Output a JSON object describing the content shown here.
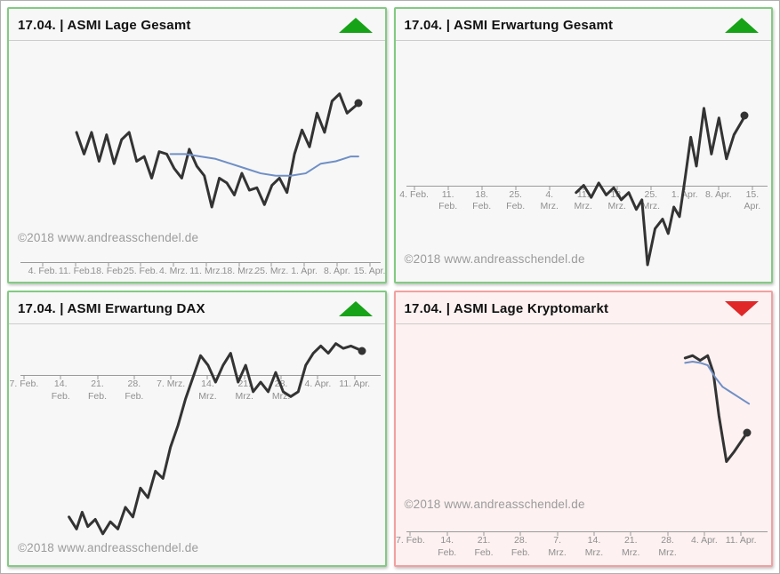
{
  "note": "Dashboard of four ASMI sentiment line charts; source charts have no y-axis labels, so series values are stored as relative plot positions (x_pct from left 0-100, y_pct from top 0-100).",
  "chart_data": [
    {
      "type": "line",
      "title": "17.04. | ASMI Lage Gesamt",
      "trend": "up",
      "trend_color": "#17a317",
      "border_color": "#82ca82",
      "bg_color": "#f7f7f7",
      "watermark": "©2018 www.andreasschendel.de",
      "watermark_y_pct": 79,
      "axis": {
        "y_pct": 92,
        "start_pct": 9,
        "end_pct": 96,
        "ticks": [
          [
            "4. Feb.",
            ""
          ],
          [
            "11. Feb.",
            ""
          ],
          [
            "18. Feb.",
            ""
          ],
          [
            "25. Feb.",
            ""
          ],
          [
            "4. Mrz.",
            ""
          ],
          [
            "11. Mrz.",
            ""
          ],
          [
            "18. Mrz.",
            ""
          ],
          [
            "25. Mrz.",
            ""
          ],
          [
            "1. Apr.",
            ""
          ],
          [
            "8. Apr.",
            ""
          ],
          [
            "15. Apr.",
            ""
          ]
        ]
      },
      "series": [
        {
          "name": "ASMI Lage Gesamt",
          "color": "#333333",
          "width": 3,
          "end_dot": true,
          "points_pct": [
            [
              18,
              38
            ],
            [
              20,
              47
            ],
            [
              22,
              38
            ],
            [
              24,
              50
            ],
            [
              26,
              39
            ],
            [
              28,
              51
            ],
            [
              30,
              41
            ],
            [
              32,
              38
            ],
            [
              34,
              50
            ],
            [
              36,
              48
            ],
            [
              38,
              57
            ],
            [
              40,
              46
            ],
            [
              42,
              47
            ],
            [
              44,
              53
            ],
            [
              46,
              57
            ],
            [
              48,
              45
            ],
            [
              50,
              52
            ],
            [
              52,
              56
            ],
            [
              54,
              69
            ],
            [
              56,
              57
            ],
            [
              58,
              59
            ],
            [
              60,
              64
            ],
            [
              62,
              55
            ],
            [
              64,
              62
            ],
            [
              66,
              61
            ],
            [
              68,
              68
            ],
            [
              70,
              60
            ],
            [
              72,
              57
            ],
            [
              74,
              63
            ],
            [
              76,
              47
            ],
            [
              78,
              37
            ],
            [
              80,
              44
            ],
            [
              82,
              30
            ],
            [
              84,
              38
            ],
            [
              86,
              25
            ],
            [
              88,
              22
            ],
            [
              90,
              30
            ],
            [
              93,
              26
            ]
          ]
        },
        {
          "name": "Trend (geglättet)",
          "color": "#6f8fc5",
          "width": 2,
          "end_dot": false,
          "points_pct": [
            [
              43,
              47
            ],
            [
              47,
              47
            ],
            [
              51,
              48
            ],
            [
              55,
              49
            ],
            [
              59,
              51
            ],
            [
              63,
              53
            ],
            [
              67,
              55
            ],
            [
              71,
              56
            ],
            [
              75,
              56
            ],
            [
              79,
              55
            ],
            [
              83,
              51
            ],
            [
              87,
              50
            ],
            [
              91,
              48
            ],
            [
              93,
              48
            ]
          ]
        }
      ]
    },
    {
      "type": "line",
      "title": "17.04. | ASMI Erwartung Gesamt",
      "trend": "up",
      "trend_color": "#17a317",
      "border_color": "#82ca82",
      "bg_color": "#f7f7f7",
      "watermark": "©2018 www.andreasschendel.de",
      "watermark_y_pct": 88,
      "axis": {
        "y_pct": 60,
        "start_pct": 5,
        "end_pct": 95,
        "ticks": [
          [
            "4. Feb.",
            ""
          ],
          [
            "11.",
            "Feb."
          ],
          [
            "18.",
            "Feb."
          ],
          [
            "25.",
            "Feb."
          ],
          [
            "4.",
            "Mrz."
          ],
          [
            "11.",
            "Mrz."
          ],
          [
            "18.",
            "Mrz."
          ],
          [
            "25.",
            "Mrz."
          ],
          [
            "1. Apr.",
            ""
          ],
          [
            "8. Apr.",
            ""
          ],
          [
            "15.",
            "Apr."
          ]
        ]
      },
      "series": [
        {
          "name": "ASMI Erwartung Gesamt",
          "color": "#333333",
          "width": 3,
          "end_dot": true,
          "points_pct": [
            [
              48,
              63
            ],
            [
              50,
              60
            ],
            [
              52,
              65
            ],
            [
              54,
              59
            ],
            [
              56,
              64
            ],
            [
              58,
              61
            ],
            [
              60,
              66
            ],
            [
              62,
              63
            ],
            [
              64,
              70
            ],
            [
              65.5,
              66
            ],
            [
              67,
              93
            ],
            [
              69,
              78
            ],
            [
              71,
              74
            ],
            [
              72.5,
              80
            ],
            [
              74,
              69
            ],
            [
              75.5,
              73
            ],
            [
              77,
              57
            ],
            [
              78.5,
              40
            ],
            [
              80,
              52
            ],
            [
              82,
              28
            ],
            [
              84,
              47
            ],
            [
              86,
              32
            ],
            [
              88,
              49
            ],
            [
              90,
              39
            ],
            [
              93,
              31
            ]
          ]
        }
      ]
    },
    {
      "type": "line",
      "title": "17.04. | ASMI Erwartung DAX",
      "trend": "up",
      "trend_color": "#17a317",
      "border_color": "#82ca82",
      "bg_color": "#f7f7f7",
      "watermark": "©2018 www.andreasschendel.de",
      "watermark_y_pct": 90,
      "axis": {
        "y_pct": 21,
        "start_pct": 4,
        "end_pct": 92,
        "ticks": [
          [
            "7. Feb.",
            ""
          ],
          [
            "14.",
            "Feb."
          ],
          [
            "21.",
            "Feb."
          ],
          [
            "28.",
            "Feb."
          ],
          [
            "7. Mrz.",
            ""
          ],
          [
            "14.",
            "Mrz."
          ],
          [
            "21.",
            "Mrz."
          ],
          [
            "28.",
            "Mrz."
          ],
          [
            "4. Apr.",
            ""
          ],
          [
            "11. Apr.",
            ""
          ]
        ]
      },
      "series": [
        {
          "name": "ASMI Erwartung DAX",
          "color": "#333333",
          "width": 3,
          "end_dot": true,
          "points_pct": [
            [
              16,
              80
            ],
            [
              18,
              85
            ],
            [
              19.5,
              78
            ],
            [
              21,
              84
            ],
            [
              23,
              81
            ],
            [
              25,
              87
            ],
            [
              27,
              82
            ],
            [
              29,
              85
            ],
            [
              31,
              76
            ],
            [
              33,
              80
            ],
            [
              35,
              68
            ],
            [
              37,
              72
            ],
            [
              39,
              61
            ],
            [
              41,
              64
            ],
            [
              43,
              51
            ],
            [
              45,
              42
            ],
            [
              47,
              31
            ],
            [
              49,
              22
            ],
            [
              51,
              13
            ],
            [
              53,
              17
            ],
            [
              55,
              24
            ],
            [
              57,
              17
            ],
            [
              59,
              12
            ],
            [
              61,
              24
            ],
            [
              63,
              17
            ],
            [
              65,
              28
            ],
            [
              67,
              24
            ],
            [
              69,
              28
            ],
            [
              71,
              20
            ],
            [
              73,
              28
            ],
            [
              75,
              30
            ],
            [
              77,
              28
            ],
            [
              79,
              17
            ],
            [
              81,
              12
            ],
            [
              83,
              9
            ],
            [
              85,
              12
            ],
            [
              87,
              8
            ],
            [
              89,
              10
            ],
            [
              91,
              9
            ],
            [
              94,
              11
            ]
          ]
        }
      ]
    },
    {
      "type": "line",
      "title": "17.04. | ASMI Lage Kryptomarkt",
      "trend": "down",
      "trend_color": "#e02828",
      "border_color": "#f2a0a0",
      "bg_color": "#fdf1f1",
      "watermark": "©2018 www.andreasschendel.de",
      "watermark_y_pct": 72,
      "axis": {
        "y_pct": 86,
        "start_pct": 4,
        "end_pct": 92,
        "ticks": [
          [
            "7. Feb.",
            ""
          ],
          [
            "14.",
            "Feb."
          ],
          [
            "21.",
            "Feb."
          ],
          [
            "28.",
            "Feb."
          ],
          [
            "7.",
            "Mrz."
          ],
          [
            "14.",
            "Mrz."
          ],
          [
            "21.",
            "Mrz."
          ],
          [
            "28.",
            "Mrz."
          ],
          [
            "4. Apr.",
            ""
          ],
          [
            "11. Apr.",
            ""
          ]
        ]
      },
      "series": [
        {
          "name": "ASMI Lage Kryptomarkt",
          "color": "#333333",
          "width": 3,
          "end_dot": true,
          "points_pct": [
            [
              77,
              14
            ],
            [
              79,
              13
            ],
            [
              81,
              15
            ],
            [
              83,
              13
            ],
            [
              84.5,
              20
            ],
            [
              86,
              38
            ],
            [
              88,
              57
            ],
            [
              90,
              53
            ],
            [
              93.5,
              45
            ]
          ]
        },
        {
          "name": "Trend (geglättet)",
          "color": "#6f8fc5",
          "width": 2,
          "end_dot": false,
          "points_pct": [
            [
              77,
              16
            ],
            [
              79,
              15.5
            ],
            [
              81,
              16
            ],
            [
              83,
              17
            ],
            [
              85,
              22
            ],
            [
              87,
              26
            ],
            [
              89,
              28
            ],
            [
              91,
              30
            ],
            [
              94,
              33
            ]
          ]
        }
      ]
    }
  ]
}
